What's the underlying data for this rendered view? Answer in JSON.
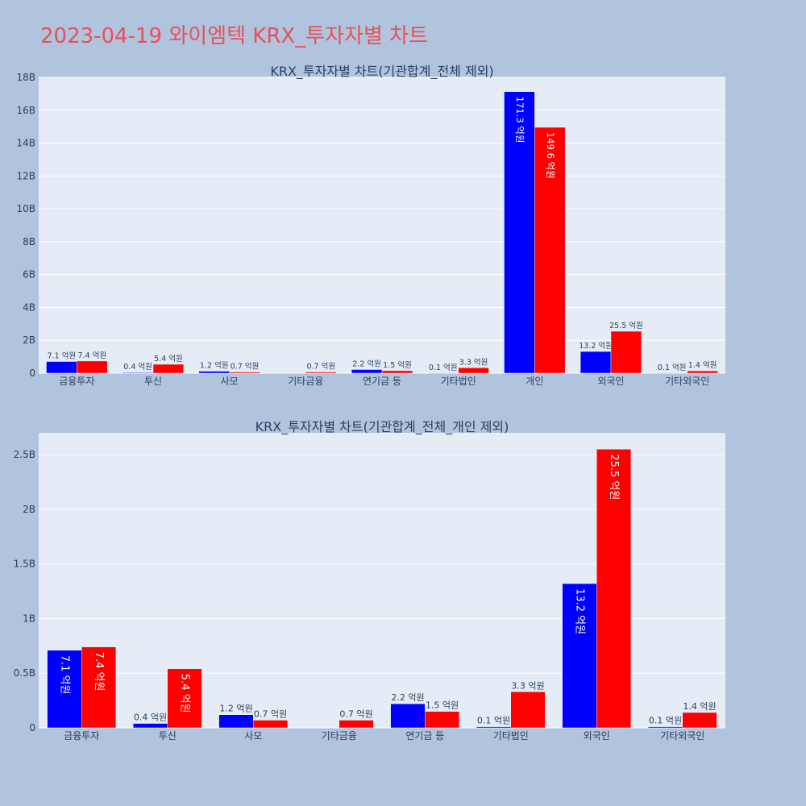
{
  "page": {
    "title": "2023-04-19 와이엠텍 KRX_투자자별 차트",
    "background": "#b0c4de",
    "title_color": "#e8505b"
  },
  "chart_data": [
    {
      "type": "bar",
      "title": "KRX_투자자별 차트(기관합계_전체 제외)",
      "categories": [
        "금융투자",
        "투신",
        "사모",
        "기타금융",
        "연기금 등",
        "기타법인",
        "개인",
        "외국인",
        "기타외국인"
      ],
      "series": [
        {
          "color": "#0000ff",
          "values": [
            710000000,
            40000000,
            120000000,
            0,
            220000000,
            10000000,
            17130000000,
            1320000000,
            10000000
          ],
          "labels": [
            "7.1 억원",
            "0.4 억원",
            "1.2 억원",
            "",
            "2.2 억원",
            "0.1 억원",
            "171.3 억원",
            "13.2 억원",
            "0.1 억원"
          ]
        },
        {
          "color": "#ff0000",
          "values": [
            740000000,
            540000000,
            70000000,
            70000000,
            150000000,
            330000000,
            14960000000,
            2550000000,
            140000000
          ],
          "labels": [
            "7.4 억원",
            "5.4 억원",
            "0.7 억원",
            "0.7 억원",
            "1.5 억원",
            "3.3 억원",
            "149.6 억원",
            "25.5 억원",
            "1.4 억원"
          ]
        }
      ],
      "ylim": [
        0,
        18000000000
      ],
      "yticks": [
        0,
        2000000000,
        4000000000,
        6000000000,
        8000000000,
        10000000000,
        12000000000,
        14000000000,
        16000000000,
        18000000000
      ],
      "ytick_labels": [
        "0",
        "2B",
        "4B",
        "6B",
        "8B",
        "10B",
        "12B",
        "14B",
        "16B",
        "18B"
      ],
      "grid": true,
      "plot_bg": "#e5ecf6",
      "label_modes": [
        "out",
        "out",
        "out",
        "out",
        "out",
        "out",
        "out",
        "out",
        "out",
        "out",
        "out",
        "out",
        "out",
        "out",
        "out",
        "out",
        "out",
        "out"
      ]
    },
    {
      "type": "bar",
      "title": "KRX_투자자별 차트(기관합계_전체_개인 제외)",
      "categories": [
        "금융투자",
        "투신",
        "사모",
        "기타금융",
        "연기금 등",
        "기타법인",
        "외국인",
        "기타외국인"
      ],
      "series": [
        {
          "color": "#0000ff",
          "values": [
            710000000,
            40000000,
            120000000,
            0,
            220000000,
            10000000,
            1320000000,
            10000000
          ],
          "labels": [
            "7.1 억원",
            "0.4 억원",
            "1.2 억원",
            "",
            "2.2 억원",
            "0.1 억원",
            "13.2 억원",
            "0.1 억원"
          ]
        },
        {
          "color": "#ff0000",
          "values": [
            740000000,
            540000000,
            70000000,
            70000000,
            150000000,
            330000000,
            2550000000,
            140000000
          ],
          "labels": [
            "7.4 억원",
            "5.4 억원",
            "0.7 억원",
            "0.7 억원",
            "1.5 억원",
            "3.3 억원",
            "25.5 억원",
            "1.4 억원"
          ]
        }
      ],
      "ylim": [
        0,
        2700000000
      ],
      "yticks": [
        0,
        500000000,
        1000000000,
        1500000000,
        2000000000,
        2500000000
      ],
      "ytick_labels": [
        "0",
        "0.5B",
        "1B",
        "1.5B",
        "2B",
        "2.5B"
      ],
      "grid": true,
      "plot_bg": "#e5ecf6"
    }
  ]
}
